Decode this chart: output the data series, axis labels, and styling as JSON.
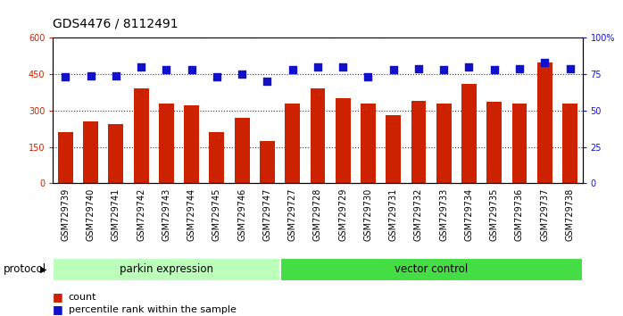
{
  "title": "GDS4476 / 8112491",
  "samples": [
    "GSM729739",
    "GSM729740",
    "GSM729741",
    "GSM729742",
    "GSM729743",
    "GSM729744",
    "GSM729745",
    "GSM729746",
    "GSM729747",
    "GSM729727",
    "GSM729728",
    "GSM729729",
    "GSM729730",
    "GSM729731",
    "GSM729732",
    "GSM729733",
    "GSM729734",
    "GSM729735",
    "GSM729736",
    "GSM729737",
    "GSM729738"
  ],
  "counts": [
    210,
    255,
    245,
    390,
    330,
    320,
    210,
    270,
    175,
    330,
    390,
    350,
    330,
    280,
    340,
    330,
    410,
    335,
    330,
    500,
    330
  ],
  "percentile_ranks": [
    73,
    74,
    74,
    80,
    78,
    78,
    73,
    75,
    70,
    78,
    80,
    80,
    73,
    78,
    79,
    78,
    80,
    78,
    79,
    83,
    79
  ],
  "parkin_count": 9,
  "vector_count": 12,
  "bar_color": "#cc2200",
  "dot_color": "#1111cc",
  "parkin_color": "#bbffbb",
  "vector_color": "#44dd44",
  "ylim_left": [
    0,
    600
  ],
  "ylim_right": [
    0,
    100
  ],
  "yticks_left": [
    0,
    150,
    300,
    450,
    600
  ],
  "yticks_right": [
    0,
    25,
    50,
    75,
    100
  ],
  "bar_width": 0.6,
  "dot_size": 30,
  "legend_count_label": "count",
  "legend_pct_label": "percentile rank within the sample",
  "protocol_label": "protocol",
  "parkin_label": "parkin expression",
  "vector_label": "vector control",
  "title_fontsize": 10,
  "tick_fontsize": 7,
  "label_fontsize": 8.5,
  "legend_fontsize": 8
}
